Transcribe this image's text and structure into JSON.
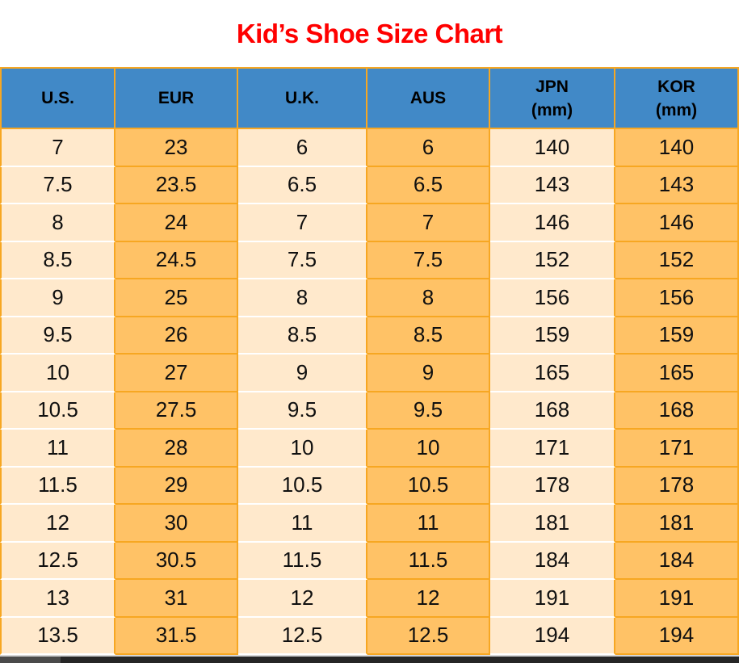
{
  "title": "Kid’s Shoe Size Chart",
  "colors": {
    "title_red": "#FF0000",
    "header_blue": "#4189C7",
    "cream_column": "#FFE9CC",
    "orange_column": "#FFC266",
    "grid_border_orange": "#F7A722",
    "row_separator_white": "#FFFFFF",
    "bottom_bar_dark": "#262626"
  },
  "table": {
    "headers": [
      {
        "label": "U.S."
      },
      {
        "label": "EUR"
      },
      {
        "label": "U.K."
      },
      {
        "label": "AUS"
      },
      {
        "label": "JPN",
        "sub": "(mm)"
      },
      {
        "label": "KOR",
        "sub": "(mm)"
      }
    ],
    "column_keys": [
      "us",
      "eur",
      "uk",
      "aus",
      "jpn-mm",
      "kor-mm"
    ]
  },
  "chart_data": {
    "type": "table",
    "title": "Kid’s Shoe Size Chart",
    "columns": [
      "U.S.",
      "EUR",
      "U.K.",
      "AUS",
      "JPN (mm)",
      "KOR (mm)"
    ],
    "rows": [
      [
        7,
        23,
        6,
        6,
        140,
        140
      ],
      [
        7.5,
        23.5,
        6.5,
        6.5,
        143,
        143
      ],
      [
        8,
        24,
        7,
        7,
        146,
        146
      ],
      [
        8.5,
        24.5,
        7.5,
        7.5,
        152,
        152
      ],
      [
        9,
        25,
        8,
        8,
        156,
        156
      ],
      [
        9.5,
        26,
        8.5,
        8.5,
        159,
        159
      ],
      [
        10,
        27,
        9,
        9,
        165,
        165
      ],
      [
        10.5,
        27.5,
        9.5,
        9.5,
        168,
        168
      ],
      [
        11,
        28,
        10,
        10,
        171,
        171
      ],
      [
        11.5,
        29,
        10.5,
        10.5,
        178,
        178
      ],
      [
        12,
        30,
        11,
        11,
        181,
        181
      ],
      [
        12.5,
        30.5,
        11.5,
        11.5,
        184,
        184
      ],
      [
        13,
        31,
        12,
        12,
        191,
        191
      ],
      [
        13.5,
        31.5,
        12.5,
        12.5,
        194,
        194
      ]
    ]
  }
}
